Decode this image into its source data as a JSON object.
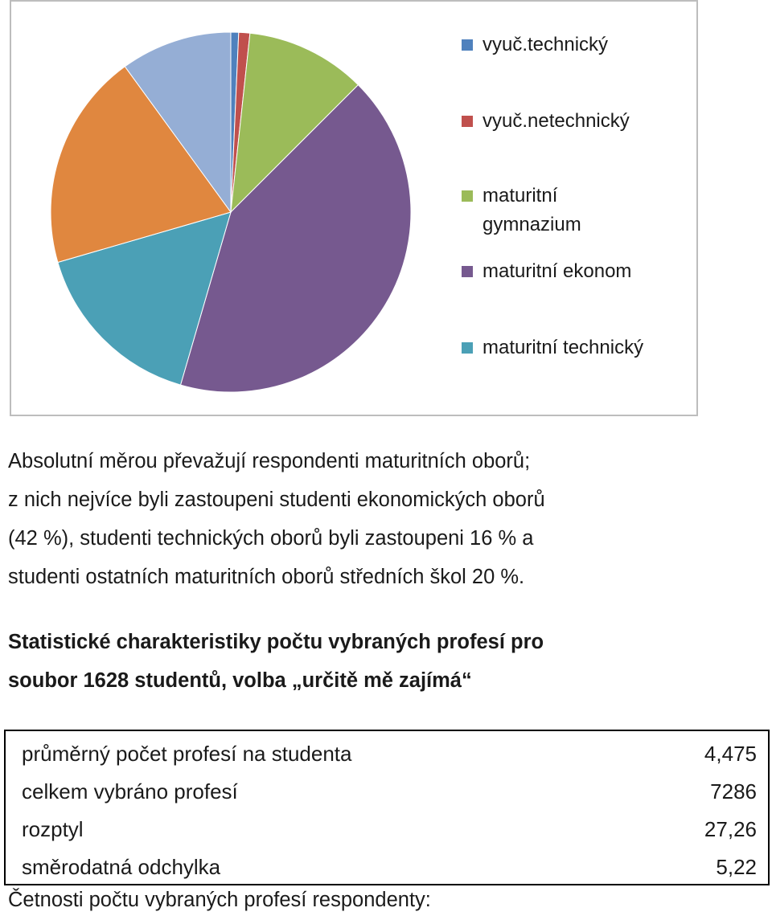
{
  "chart_data": {
    "type": "pie",
    "categories": [
      "vyuč.technický",
      "vyuč.netechnický",
      "maturitní gymnazium",
      "maturitní ekonom",
      "maturitní technický",
      null,
      null
    ],
    "values": [
      0.7,
      1,
      10.8,
      42,
      16,
      19.5,
      10
    ],
    "colors": [
      "#4f81bd",
      "#c0504d",
      "#9bbb59",
      "#76598f",
      "#4ba0b6",
      "#e0873f",
      "#95aed5"
    ],
    "legend": "right"
  },
  "paragraph_lines": [
    "Absolutní měrou převažují respondenti maturitních oborů;",
    "z nich nejvíce byli zastoupeni studenti ekonomických oborů",
    "(42 %), studenti technických oborů byli zastoupeni 16 % a",
    "studenti ostatních maturitních oborů středních škol 20 %."
  ],
  "heading_lines": [
    "Statistické charakteristiky počtu vybraných profesí pro",
    "soubor 1628 studentů, volba „určitě mě zajímá“"
  ],
  "table": {
    "rows": [
      [
        "průměrný počet profesí na studenta",
        "4,475"
      ],
      [
        "celkem vybráno profesí",
        "7286"
      ],
      [
        "rozptyl",
        "27,26"
      ],
      [
        "směrodatná odchylka",
        "5,22"
      ]
    ]
  },
  "footer": "Četnosti počtu vybraných profesí respondenty:"
}
